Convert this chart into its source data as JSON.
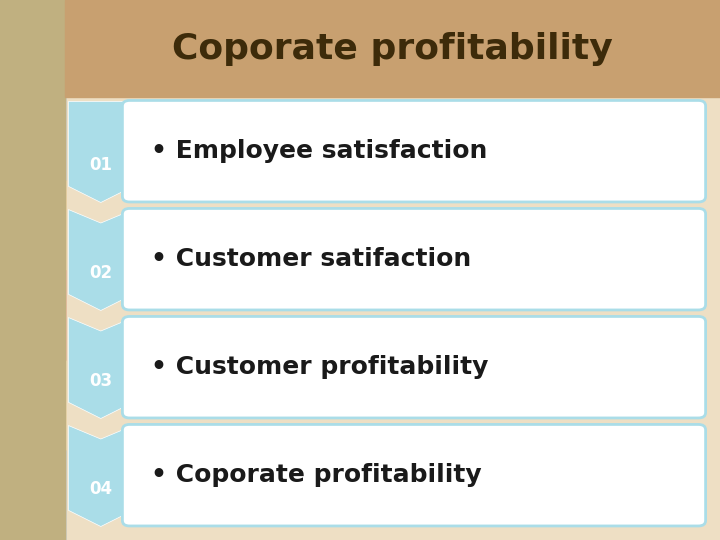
{
  "title": "Coporate profitability",
  "title_color": "#3d2b0a",
  "title_fontsize": 26,
  "title_bold": true,
  "bg_left_color": "#c8a882",
  "bg_right_color": "#e8d5bc",
  "items": [
    {
      "number": "01",
      "text": "• Employee satisfaction"
    },
    {
      "number": "02",
      "text": "• Customer satifaction"
    },
    {
      "number": "03",
      "text": "• Customer profitability"
    },
    {
      "number": "04",
      "text": "• Coporate profitability"
    }
  ],
  "box_fill_color": "#ffffff",
  "box_edge_color": "#aadde8",
  "box_edge_width": 2,
  "arrow_fill_color": "#aadde8",
  "number_color": "#ffffff",
  "number_fontsize": 12,
  "item_text_color": "#1a1a1a",
  "item_text_fontsize": 18,
  "item_text_bold": true,
  "figsize": [
    7.2,
    5.4
  ],
  "dpi": 100
}
